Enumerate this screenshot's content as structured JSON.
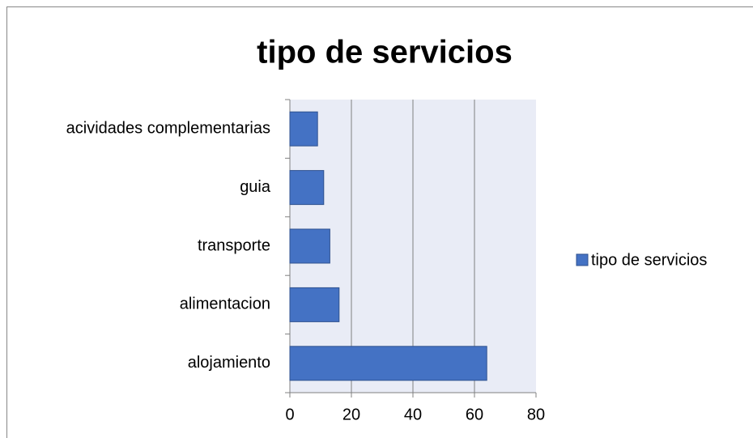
{
  "chart_data": {
    "type": "bar",
    "orientation": "horizontal",
    "title": "tipo de servicios",
    "categories": [
      "alojamiento",
      "alimentacion",
      "transporte",
      "guia",
      "acividades complementarias"
    ],
    "series": [
      {
        "name": "tipo de servicios",
        "color": "#4472c4",
        "values": [
          64,
          16,
          13,
          11,
          9
        ]
      }
    ],
    "xlim": [
      0,
      80
    ],
    "xticks": [
      0,
      20,
      40,
      60,
      80
    ],
    "grid": true,
    "legend": "right"
  }
}
